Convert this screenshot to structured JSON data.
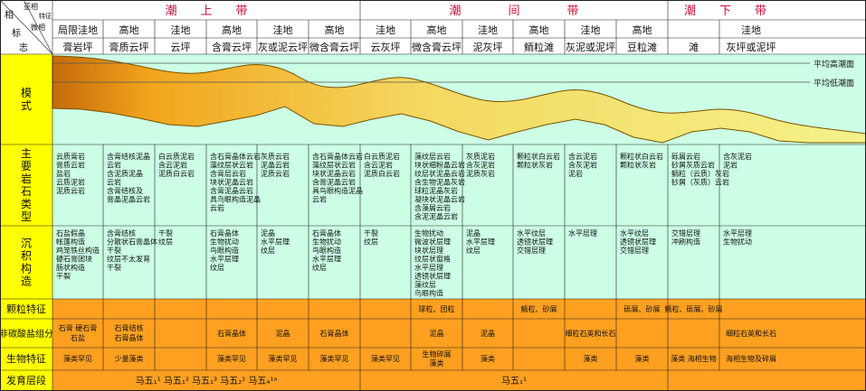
{
  "corner": {
    "top1": "亚相",
    "top2": "特征",
    "mid": "微相",
    "bottom1": "相",
    "bottom2": "标",
    "bottom3": "志"
  },
  "zones": [
    "潮　　上　　带",
    "潮　　　　间　　　　带",
    "潮　　下　　带"
  ],
  "columns": [
    {
      "sub": "局限洼地",
      "micro": "膏岩坪"
    },
    {
      "sub": "高地",
      "micro": "膏质云坪"
    },
    {
      "sub": "洼地",
      "micro": "云坪"
    },
    {
      "sub": "高地",
      "micro": "含膏云坪"
    },
    {
      "sub": "洼地",
      "micro": "灰或泥云坪"
    },
    {
      "sub": "高地",
      "micro": "微含膏云坪"
    },
    {
      "sub": "洼地",
      "micro": "云灰坪"
    },
    {
      "sub": "高地",
      "micro": "微含膏云坪"
    },
    {
      "sub": "洼地",
      "micro": "泥灰坪"
    },
    {
      "sub": "高地",
      "micro": "鲕粒滩"
    },
    {
      "sub": "洼地",
      "micro": "灰泥或泥坪"
    },
    {
      "sub": "高地",
      "micro": "豆粒滩"
    },
    {
      "sub": "",
      "micro": "滩"
    },
    {
      "sub": "洼地",
      "micro": "灰坪或泥坪"
    }
  ],
  "row_labels": {
    "model": "模式",
    "lithology": "主要岩石类型",
    "structure": "沉积构造",
    "grain": "颗粒特征",
    "noncarb": "非碳酸盐组分",
    "bio": "生物特征",
    "layer": "发育层段"
  },
  "model_labels": {
    "high_tide": "平均高潮面",
    "low_tide": "平均低潮面"
  },
  "lithology": [
    [
      "云质膏岩",
      "膏质云岩",
      "盐岩",
      "云质泥岩",
      "泥质云岩"
    ],
    [
      "含膏结核泥晶",
      "云岩",
      "含泥质泥晶",
      "云岩",
      "含膏结核及",
      "膏晶泥晶云岩"
    ],
    [
      "白云质泥岩",
      "含云泥岩",
      "泥质白云岩"
    ],
    [
      "含石膏晶体云岩",
      "藻纹层状云岩",
      "含膏层云岩",
      "块状泥晶云岩",
      "含膏泥晶云岩",
      "具鸟眼构造泥晶",
      "云岩"
    ],
    [
      "灰质云岩",
      "泥晶云岩",
      "泥质云岩"
    ],
    [
      "含石膏晶体云岩",
      "藻纹层状云岩",
      "块状泥晶云岩",
      "含膏泥晶云岩",
      "具鸟眼构造泥晶",
      "云岩"
    ],
    [
      "白云质泥岩",
      "含云泥岩",
      "泥质白云岩"
    ],
    [
      "藻纹层云岩",
      "块状细粉晶云岩",
      "纹层状泥晶云岩",
      "含生物泥晶灰岩",
      "球粒泥晶灰岩",
      "凝块状泥晶云岩",
      "含藻屑云岩",
      "含泥泥晶云岩"
    ],
    [
      "灰质泥岩",
      "含灰泥岩",
      "泥质灰岩"
    ],
    [
      "颗粒状白云岩",
      "颗粒状灰岩"
    ],
    [
      "含云泥岩",
      "含灰泥岩",
      "泥岩"
    ],
    [
      "颗粒状白云岩",
      "颗粒状灰岩"
    ],
    [
      "砾屑云岩",
      "砂屑灰质云岩",
      "鲕粒（云质）灰岩",
      "砂屑（灰质）云岩"
    ],
    [
      "含灰泥岩",
      "泥岩"
    ]
  ],
  "structure": [
    [
      "石盐假晶",
      "帐篷构造",
      "鸡笼铁丝构造",
      "硬石膏团块",
      "肠状构造",
      "干裂"
    ],
    [
      "含膏结核",
      "分散状石膏晶体",
      "干裂",
      "纹层不太发育",
      "干裂"
    ],
    [
      "干裂",
      "纹层"
    ],
    [
      "石膏晶体",
      "生物扰动",
      "鸟眼构造",
      "水平层理",
      "纹层"
    ],
    [
      "泥晶",
      "水平层理",
      "纹层"
    ],
    [
      "石膏晶体",
      "生物扰动",
      "鸟眼构造",
      "水平层理",
      "纹层"
    ],
    [
      "干裂",
      "纹层"
    ],
    [
      "生物扰动",
      "微波状层理",
      "块状层理",
      "纹层状窗格",
      "水平层理",
      "透镜状层理",
      "藻纹层",
      "鸟眼构造"
    ],
    [
      "泥晶",
      "水平层理",
      "纹层"
    ],
    [
      "水平纹层",
      "透镜状层理",
      "交错层理"
    ],
    [
      "水平层理"
    ],
    [
      "水平纹层",
      "透镜状层理",
      "交错层理"
    ],
    [
      "交错层理",
      "冲刷构造"
    ],
    [
      "水平层理",
      "生物扰动"
    ]
  ],
  "grain": [
    "",
    "",
    "",
    "",
    "",
    "",
    "",
    "球粒、团粒",
    "",
    "鲕粒、砂屑",
    "",
    "砾屑、砂屑",
    "鲕粒、砾屑、砂屑",
    ""
  ],
  "noncarb": [
    "石膏 硬石膏 石盐",
    "石膏结核 石膏晶体",
    "",
    "石膏晶体",
    "泥晶",
    "石膏晶体",
    "",
    "泥晶",
    "泥晶",
    "",
    "细粒石英和长石",
    "",
    "",
    "细粒石英和长石"
  ],
  "bio": [
    "藻类罕见",
    "少量藻类",
    "",
    "藻类罕见",
    "藻类罕见",
    "藻类罕见",
    "藻类罕见",
    "生物碎屑 藻类",
    "藻类",
    "",
    "藻类",
    "藻类",
    "藻类 海相生物",
    "海相生物及碎屑"
  ],
  "layers": [
    {
      "text": "马五₁¹ 马五₁² 马五₁³ 马五₂¹ 马五₄¹ᵃ",
      "span": [
        0,
        5
      ]
    },
    {
      "text": "马五₁¹",
      "span": [
        6,
        11
      ]
    },
    {
      "text": "",
      "span": [
        12,
        13
      ]
    }
  ],
  "colors": {
    "yellow": "#ffff00",
    "green": "#ccffe5",
    "orange": "#ffa020",
    "header": "#ffffff",
    "zone_text": "#c8103a",
    "gypsum": "#f2a51c",
    "dolomite": "#f4d860",
    "limestone": "#f5f28a",
    "dark": "#c56a0a"
  }
}
